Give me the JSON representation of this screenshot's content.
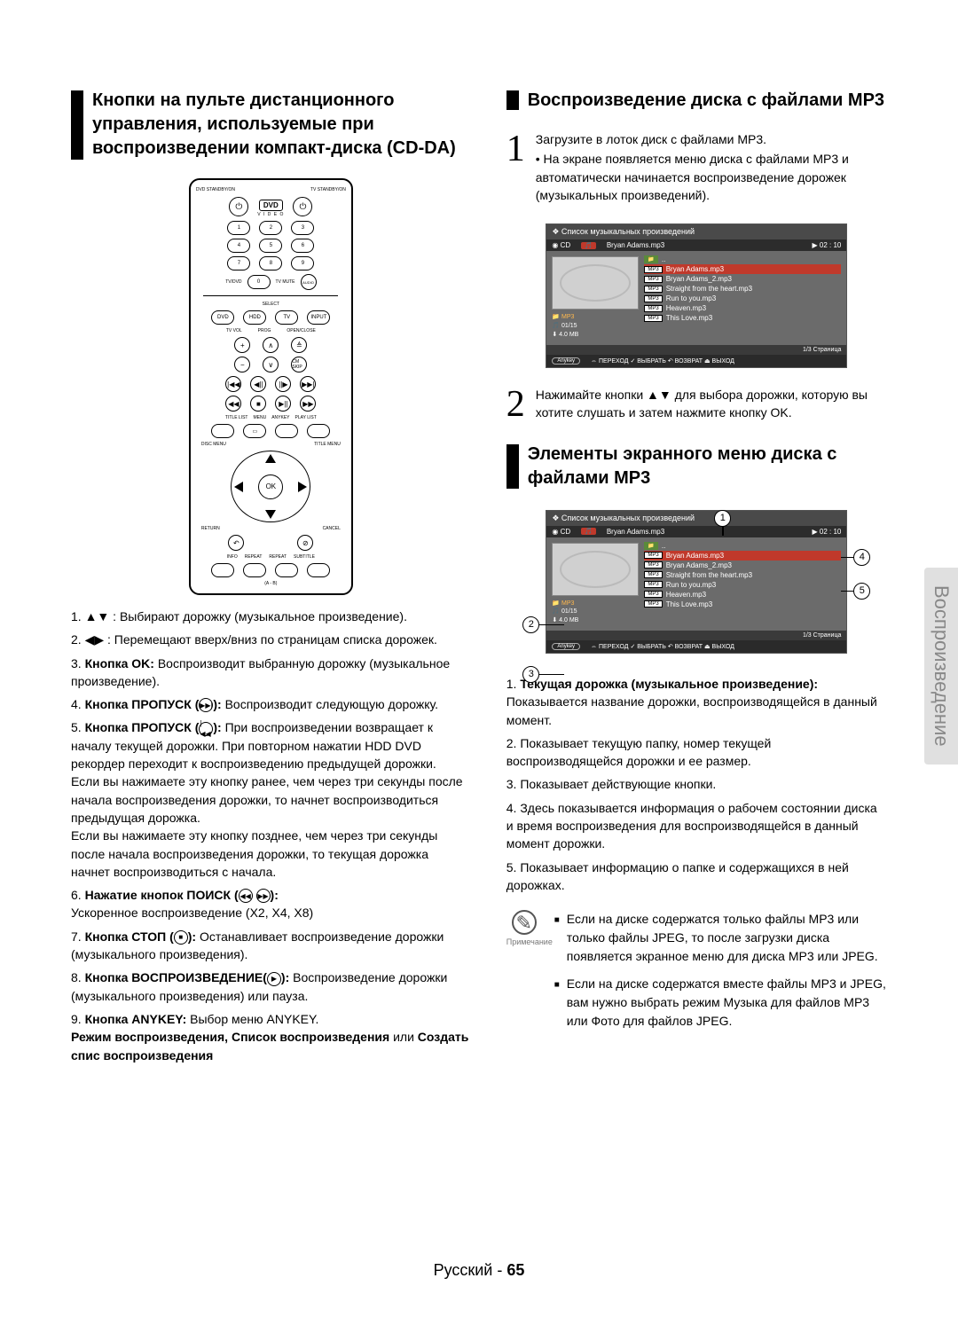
{
  "left": {
    "section_title": "Кнопки на пульте дистанционного управления, используемые при воспроизведении компакт-диска (CD-DA)",
    "remote": {
      "top_left": "DVD\nSTANDBY/ON",
      "top_right": "TV\nSTANDBY/ON",
      "logo": "DVD",
      "logo_sub": "V I D E O",
      "row_labels_1": "TV/DVD",
      "row_labels_2": "TV MUTE",
      "audio": "AUDIO",
      "select": "SELECT",
      "src_dvd": "DVD",
      "src_hdd": "HDD",
      "src_tv": "TV",
      "src_input": "INPUT",
      "tvvol": "TV VOL",
      "prog": "PROG",
      "openclose": "OPEN/CLOSE",
      "cm_skip": "CM\nSKIP",
      "titlelist": "TITLE LIST",
      "menu": "MENU",
      "anykey": "ANYKEY",
      "playlist": "PLAY LIST",
      "discmenu": "DISC MENU",
      "titlemenu": "TITLE MENU",
      "ok": "OK",
      "return": "RETURN",
      "cancel": "CANCEL",
      "info": "INFO",
      "repeat1": "REPEAT",
      "repeat2": "REPEAT",
      "subtitle": "SUBTITLE",
      "ab": "(A - B)"
    },
    "list": [
      {
        "n": "1.",
        "body": "▲▼ : Выбирают дорожку (музыкальное произведение)."
      },
      {
        "n": "2.",
        "body": "◀▶ : Перемещают вверх/вниз по страницам списка дорожек.",
        "wrap": true
      },
      {
        "n": "3.",
        "bold": "Кнопка OK:",
        "body": " Воспроизводит выбранную дорожку (музыкальное произведение).",
        "wrap": true
      },
      {
        "n": "4.",
        "bold": "Кнопка ПРОПУСК (",
        "key": "▶▶|",
        "bold2": "):",
        "body": " Воспроизводит следующую дорожку.",
        "wrap": true
      },
      {
        "n": "5.",
        "bold": "Кнопка ПРОПУСК (",
        "key": "|◀◀",
        "bold2": "):",
        "body": " При воспроизведении возвращает к началу текущей дорожки. При повторном нажатии HDD DVD рекордер переходит к воспроизведению предыдущей дорожки.\nЕсли вы нажимаете эту кнопку ранее, чем через три секунды после начала воспроизведения дорожки, то начнет воспроизводиться предыдущая дорожка.\nЕсли вы нажимаете эту кнопку позднее, чем через три секунды после начала воспроизведения дорожки, то текущая дорожка начнет воспроизводиться с начала.",
        "wrap": true
      },
      {
        "n": "6.",
        "bold": "Нажатие кнопок ПОИСК (",
        "keypair": true,
        "bold2": "):",
        "body": "\nУскоренное воспроизведение (X2, X4, X8)",
        "wrap": true
      },
      {
        "n": "7.",
        "bold": "Кнопка СТОП (",
        "key": "■",
        "bold2": "):",
        "body": " Останавливает воспроизведение дорожки (музыкального произведения).",
        "wrap": true
      },
      {
        "n": "8.",
        "bold": "Кнопка ВОСПРОИЗВЕДЕНИЕ(",
        "key": "▶",
        "bold2": "):",
        "body": " Воспроизведение дорожки (музыкального произведения) или пауза.",
        "wrap": true
      },
      {
        "n": "9.",
        "bold": "Кнопка ANYKEY:",
        "body": " Выбор меню ANYKEY.",
        "tail_bold": "Режим воспроизведения, Список воспроизведения",
        "tail_plain": " или ",
        "tail_bold2": "Создать спис воспроизведения"
      }
    ]
  },
  "right": {
    "section1_title": "Воспроизведение диска с файлами MP3",
    "step1": {
      "num": "1",
      "line1": "Загрузите в лоток диск с файлами MP3.",
      "line2": "• На экране появляется меню диска с файлами MP3 и автоматически начинается воспроизведение дорожек (музыкальных произведений)."
    },
    "screen": {
      "hdr_left": "❖  Список музыкальных произведений",
      "sub_cd": "CD",
      "sub_track": "Bryan Adams.mp3",
      "sub_time": "▶ 02 : 10",
      "files": [
        {
          "tag": "📁",
          "name": "..",
          "root": true
        },
        {
          "tag": "MP3",
          "name": "Bryan Adams.mp3",
          "sel": true
        },
        {
          "tag": "MP3",
          "name": "Bryan Adams_2.mp3"
        },
        {
          "tag": "MP3",
          "name": "Straight from the heart.mp3"
        },
        {
          "tag": "MP3",
          "name": "Run to you.mp3"
        },
        {
          "tag": "MP3",
          "name": "Heaven.mp3"
        },
        {
          "tag": "MP3",
          "name": "This Love.mp3"
        }
      ],
      "left_folder": "MP3",
      "left_count": "01/15",
      "left_size": "4.0 MB",
      "foot1": "1/3 Страница",
      "foot2_anykey": "Anykey",
      "foot2_items": "⇔ ПЕРЕХОД   ✓ ВЫБРАТЬ   ↶ ВОЗВРАТ   ⏏ ВЫХОД"
    },
    "step2": {
      "num": "2",
      "body": "Нажимайте кнопки ▲▼ для выбора дорожки, которую вы хотите слушать и затем нажмите кнопку OK."
    },
    "section2_title": "Элементы экранного меню диска с файлами MP3",
    "annot": {
      "a1": "1",
      "a2": "2",
      "a3": "3",
      "a4": "4",
      "a5": "5"
    },
    "list2": [
      {
        "n": "1.",
        "bold": "Текущая дорожка (музыкальное произведение):",
        "body": " Показывается название дорожки, воспроизводящейся в данный момент."
      },
      {
        "n": "2.",
        "body": "Показывает текущую папку, номер текущей воспроизводящейся дорожки и ее размер."
      },
      {
        "n": "3.",
        "body": "Показывает действующие кнопки."
      },
      {
        "n": "4.",
        "body": "Здесь показывается информация о рабочем состоянии диска и время воспроизведения для воспроизводящейся в данный момент дорожки."
      },
      {
        "n": "5.",
        "body": "Показывает информацию о папке и содержащихся в ней дорожках."
      }
    ],
    "note_caption": "Примечание",
    "notes": [
      "Если на диске содержатся только файлы MP3 или только файлы JPEG, то после загрузки диска появляется экранное меню для диска MP3 или JPEG.",
      "Если на диске содержатся вместе файлы MP3 и JPEG, вам нужно выбрать режим Музыка для файлов MP3 или Фото для файлов JPEG."
    ]
  },
  "side_tab": "Воспроизведение",
  "footer_lang": "Русский",
  "footer_sep": " - ",
  "footer_page": "65"
}
